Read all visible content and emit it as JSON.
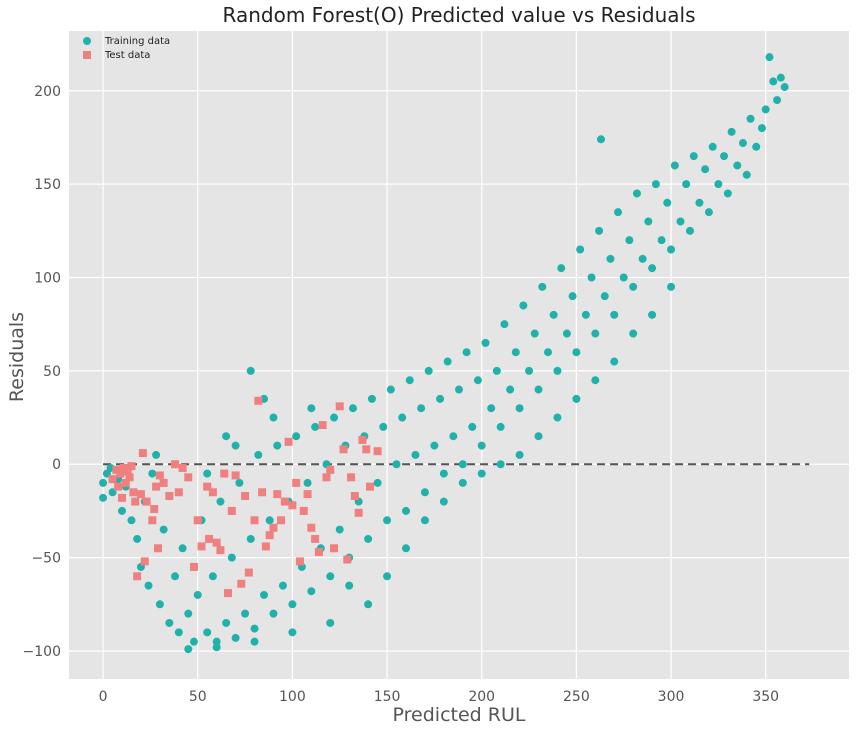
{
  "chart_data": {
    "type": "scatter",
    "title": "Random Forest(O) Predicted value vs Residuals",
    "xlabel": "Predicted RUL",
    "ylabel": "Residuals",
    "xlim": [
      -18,
      394
    ],
    "ylim": [
      -115,
      232
    ],
    "xticks": [
      0,
      50,
      100,
      150,
      200,
      250,
      300,
      350
    ],
    "yticks": [
      -100,
      -50,
      0,
      50,
      100,
      150,
      200
    ],
    "xtick_labels": [
      "0",
      "50",
      "100",
      "150",
      "200",
      "250",
      "300",
      "350"
    ],
    "ytick_labels": [
      "−100",
      "−50",
      "0",
      "50",
      "100",
      "150",
      "200"
    ],
    "grid": true,
    "legend_position": "top-left",
    "reference_line": {
      "y": 0,
      "x_range": [
        0,
        373
      ],
      "style": "dashed",
      "color": "#555555"
    },
    "series": [
      {
        "name": "Training data",
        "marker": "circle",
        "color": "#20B2AA",
        "points": [
          [
            0,
            -10
          ],
          [
            0,
            -18
          ],
          [
            2,
            -5
          ],
          [
            4,
            -2
          ],
          [
            5,
            -15
          ],
          [
            8,
            -8
          ],
          [
            10,
            -25
          ],
          [
            12,
            -12
          ],
          [
            15,
            -30
          ],
          [
            18,
            -40
          ],
          [
            20,
            -55
          ],
          [
            22,
            -20
          ],
          [
            24,
            -65
          ],
          [
            26,
            -5
          ],
          [
            28,
            5
          ],
          [
            30,
            -75
          ],
          [
            32,
            -35
          ],
          [
            35,
            -85
          ],
          [
            38,
            -60
          ],
          [
            40,
            -90
          ],
          [
            42,
            -45
          ],
          [
            45,
            -80
          ],
          [
            48,
            -95
          ],
          [
            50,
            -70
          ],
          [
            52,
            -30
          ],
          [
            55,
            -90
          ],
          [
            58,
            -60
          ],
          [
            60,
            -95
          ],
          [
            62,
            -20
          ],
          [
            65,
            -85
          ],
          [
            68,
            -50
          ],
          [
            70,
            -93
          ],
          [
            72,
            -10
          ],
          [
            75,
            -80
          ],
          [
            78,
            -40
          ],
          [
            80,
            -88
          ],
          [
            82,
            5
          ],
          [
            85,
            -70
          ],
          [
            88,
            -30
          ],
          [
            90,
            -80
          ],
          [
            92,
            10
          ],
          [
            95,
            -65
          ],
          [
            98,
            -20
          ],
          [
            100,
            -75
          ],
          [
            102,
            15
          ],
          [
            105,
            -55
          ],
          [
            108,
            -10
          ],
          [
            110,
            -68
          ],
          [
            112,
            20
          ],
          [
            115,
            -45
          ],
          [
            118,
            0
          ],
          [
            120,
            -60
          ],
          [
            122,
            25
          ],
          [
            125,
            -35
          ],
          [
            128,
            10
          ],
          [
            130,
            -50
          ],
          [
            132,
            30
          ],
          [
            135,
            -20
          ],
          [
            138,
            15
          ],
          [
            140,
            -40
          ],
          [
            142,
            35
          ],
          [
            145,
            -10
          ],
          [
            148,
            20
          ],
          [
            150,
            -30
          ],
          [
            152,
            40
          ],
          [
            155,
            0
          ],
          [
            158,
            25
          ],
          [
            160,
            -25
          ],
          [
            162,
            45
          ],
          [
            165,
            5
          ],
          [
            168,
            30
          ],
          [
            170,
            -15
          ],
          [
            172,
            50
          ],
          [
            175,
            10
          ],
          [
            178,
            35
          ],
          [
            180,
            -5
          ],
          [
            182,
            55
          ],
          [
            185,
            15
          ],
          [
            188,
            40
          ],
          [
            190,
            0
          ],
          [
            192,
            60
          ],
          [
            195,
            20
          ],
          [
            198,
            45
          ],
          [
            200,
            10
          ],
          [
            202,
            65
          ],
          [
            205,
            30
          ],
          [
            208,
            50
          ],
          [
            210,
            20
          ],
          [
            212,
            75
          ],
          [
            215,
            40
          ],
          [
            218,
            60
          ],
          [
            220,
            30
          ],
          [
            222,
            85
          ],
          [
            225,
            50
          ],
          [
            228,
            70
          ],
          [
            230,
            40
          ],
          [
            232,
            95
          ],
          [
            235,
            60
          ],
          [
            238,
            80
          ],
          [
            240,
            50
          ],
          [
            242,
            105
          ],
          [
            245,
            70
          ],
          [
            248,
            90
          ],
          [
            250,
            60
          ],
          [
            252,
            115
          ],
          [
            255,
            80
          ],
          [
            258,
            100
          ],
          [
            260,
            70
          ],
          [
            262,
            125
          ],
          [
            265,
            90
          ],
          [
            268,
            110
          ],
          [
            270,
            80
          ],
          [
            272,
            135
          ],
          [
            275,
            100
          ],
          [
            278,
            120
          ],
          [
            280,
            95
          ],
          [
            282,
            145
          ],
          [
            285,
            110
          ],
          [
            288,
            130
          ],
          [
            290,
            105
          ],
          [
            292,
            150
          ],
          [
            295,
            120
          ],
          [
            298,
            140
          ],
          [
            300,
            115
          ],
          [
            302,
            160
          ],
          [
            305,
            130
          ],
          [
            308,
            150
          ],
          [
            310,
            125
          ],
          [
            312,
            165
          ],
          [
            315,
            140
          ],
          [
            318,
            158
          ],
          [
            320,
            135
          ],
          [
            322,
            170
          ],
          [
            325,
            150
          ],
          [
            328,
            165
          ],
          [
            330,
            145
          ],
          [
            332,
            178
          ],
          [
            335,
            160
          ],
          [
            338,
            172
          ],
          [
            340,
            155
          ],
          [
            342,
            185
          ],
          [
            345,
            170
          ],
          [
            348,
            180
          ],
          [
            350,
            190
          ],
          [
            352,
            218
          ],
          [
            354,
            205
          ],
          [
            356,
            195
          ],
          [
            358,
            207
          ],
          [
            360,
            202
          ],
          [
            263,
            174
          ],
          [
            140,
            -75
          ],
          [
            120,
            -85
          ],
          [
            100,
            -90
          ],
          [
            80,
            -95
          ],
          [
            60,
            -98
          ],
          [
            45,
            -99
          ],
          [
            55,
            -5
          ],
          [
            70,
            10
          ],
          [
            65,
            15
          ],
          [
            90,
            25
          ],
          [
            85,
            35
          ],
          [
            78,
            50
          ],
          [
            110,
            30
          ],
          [
            130,
            -65
          ],
          [
            150,
            -60
          ],
          [
            160,
            -45
          ],
          [
            170,
            -30
          ],
          [
            180,
            -20
          ],
          [
            190,
            -10
          ],
          [
            200,
            -5
          ],
          [
            210,
            0
          ],
          [
            220,
            5
          ],
          [
            230,
            15
          ],
          [
            240,
            25
          ],
          [
            250,
            35
          ],
          [
            260,
            45
          ],
          [
            270,
            55
          ],
          [
            280,
            70
          ],
          [
            290,
            80
          ],
          [
            300,
            95
          ]
        ]
      },
      {
        "name": "Test data",
        "marker": "square",
        "color": "#F08080",
        "points": [
          [
            5,
            -8
          ],
          [
            7,
            -3
          ],
          [
            8,
            -12
          ],
          [
            9,
            -5
          ],
          [
            10,
            -18
          ],
          [
            11,
            -2
          ],
          [
            12,
            -10
          ],
          [
            13,
            -4
          ],
          [
            14,
            -7
          ],
          [
            15,
            -1
          ],
          [
            16,
            -15
          ],
          [
            17,
            -20
          ],
          [
            18,
            -60
          ],
          [
            20,
            -16
          ],
          [
            21,
            6
          ],
          [
            22,
            -52
          ],
          [
            23,
            -20
          ],
          [
            26,
            -30
          ],
          [
            27,
            -24
          ],
          [
            28,
            -12
          ],
          [
            29,
            -45
          ],
          [
            30,
            -6
          ],
          [
            32,
            -10
          ],
          [
            35,
            -17
          ],
          [
            38,
            0
          ],
          [
            40,
            -15
          ],
          [
            42,
            -2
          ],
          [
            45,
            -7
          ],
          [
            48,
            -55
          ],
          [
            50,
            -30
          ],
          [
            52,
            -44
          ],
          [
            55,
            -12
          ],
          [
            56,
            -40
          ],
          [
            58,
            -15
          ],
          [
            60,
            -42
          ],
          [
            62,
            -46
          ],
          [
            64,
            -5
          ],
          [
            66,
            -69
          ],
          [
            68,
            -25
          ],
          [
            70,
            -6
          ],
          [
            73,
            -64
          ],
          [
            75,
            -17
          ],
          [
            77,
            -58
          ],
          [
            80,
            -30
          ],
          [
            82,
            34
          ],
          [
            84,
            -15
          ],
          [
            86,
            -44
          ],
          [
            88,
            -38
          ],
          [
            90,
            -34
          ],
          [
            92,
            -16
          ],
          [
            94,
            -30
          ],
          [
            96,
            -20
          ],
          [
            98,
            12
          ],
          [
            100,
            -22
          ],
          [
            102,
            -10
          ],
          [
            104,
            -52
          ],
          [
            106,
            -25
          ],
          [
            108,
            -16
          ],
          [
            110,
            -34
          ],
          [
            112,
            -40
          ],
          [
            114,
            -47
          ],
          [
            116,
            21
          ],
          [
            118,
            -7
          ],
          [
            120,
            -3
          ],
          [
            122,
            -45
          ],
          [
            125,
            31
          ],
          [
            127,
            8
          ],
          [
            129,
            -51
          ],
          [
            131,
            -7
          ],
          [
            133,
            -17
          ],
          [
            135,
            -26
          ],
          [
            137,
            13
          ],
          [
            139,
            8
          ],
          [
            141,
            -12
          ],
          [
            145,
            7
          ]
        ]
      }
    ]
  }
}
